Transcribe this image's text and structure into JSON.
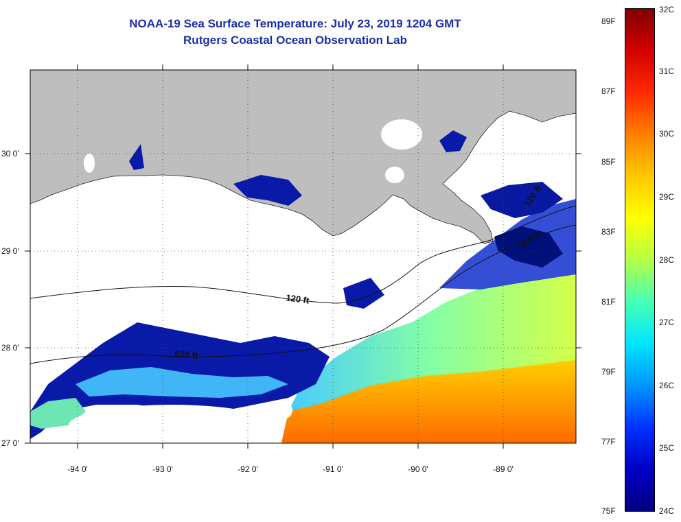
{
  "title": "NOAA-19 Sea Surface Temperature:  July 23, 2019 1204 GMT",
  "subtitle": "Rutgers Coastal Ocean Observation Lab",
  "map": {
    "lon_labels": [
      "-94 0'",
      "-93 0'",
      "-92 0'",
      "-91 0'",
      "-90 0'",
      "-89 0'"
    ],
    "lat_labels": [
      "30 0'",
      "29 0'",
      "28 0'",
      "27 0'"
    ],
    "contour_labels": [
      "120 ft",
      "600 ft",
      "600 ft",
      "120 ft"
    ],
    "land_color": "#bebebe",
    "cloud_color": "#ffffff"
  },
  "colorbar": {
    "celsius_labels": [
      "32C",
      "31C",
      "30C",
      "29C",
      "28C",
      "27C",
      "26C",
      "25C",
      "24C"
    ],
    "fahrenheit_labels": [
      "89F",
      "87F",
      "85F",
      "83F",
      "81F",
      "79F",
      "77F",
      "75F"
    ],
    "gradient_colors": [
      "#7f0000",
      "#d40000",
      "#ff2a00",
      "#ff7f00",
      "#ffc800",
      "#ffff00",
      "#b4ff46",
      "#46ffb4",
      "#00e5ff",
      "#0096ff",
      "#0032ff",
      "#0000c8",
      "#00007f"
    ]
  }
}
